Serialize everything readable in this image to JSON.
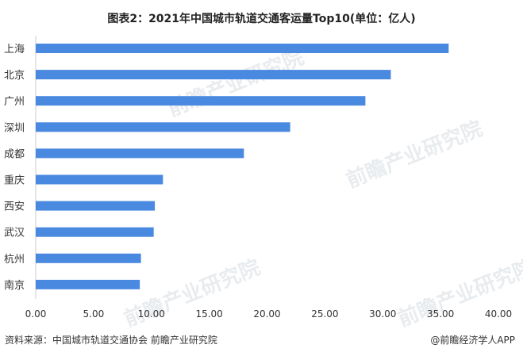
{
  "chart_data": {
    "type": "bar",
    "orientation": "horizontal",
    "title": "图表2：2021年中国城市轨道交通客运量Top10(单位：亿人)",
    "categories": [
      "上海",
      "北京",
      "广州",
      "深圳",
      "成都",
      "重庆",
      "西安",
      "武汉",
      "杭州",
      "南京"
    ],
    "values": [
      35.7,
      30.7,
      28.5,
      22.0,
      18.0,
      11.0,
      10.3,
      10.2,
      9.1,
      9.0
    ],
    "x_ticks": [
      "0.00",
      "5.00",
      "10.00",
      "15.00",
      "20.00",
      "25.00",
      "30.00",
      "35.00",
      "40.00"
    ],
    "xlim": [
      0,
      40
    ],
    "xlabel": "",
    "ylabel": "",
    "grid": false,
    "legend": "none",
    "bar_color": "#4a89e0"
  },
  "footer": {
    "source": "资料来源：中国城市轨道交通协会 前瞻产业研究院",
    "brand": "@前瞻经济学人APP"
  },
  "watermark": {
    "text": "前瞻产业研究院"
  }
}
